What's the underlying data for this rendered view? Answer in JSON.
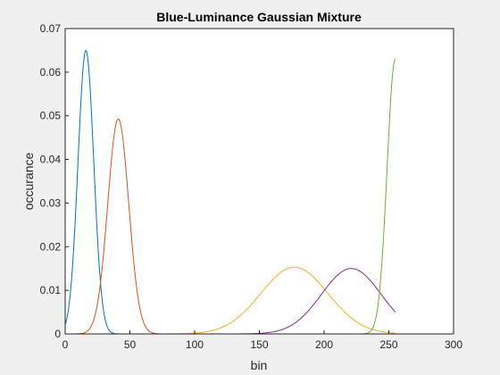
{
  "chart_data": {
    "type": "line",
    "title": "Blue-Luminance Gaussian Mixture",
    "xlabel": "bin",
    "ylabel": "occurance",
    "xlim": [
      0,
      300
    ],
    "ylim": [
      0,
      0.07
    ],
    "x_ticks": [
      "0",
      "50",
      "100",
      "150",
      "200",
      "250",
      "300"
    ],
    "y_ticks": [
      "0",
      "0.01",
      "0.02",
      "0.03",
      "0.04",
      "0.05",
      "0.06",
      "0.07"
    ],
    "grid": false,
    "legend": "none",
    "x_range": [
      0,
      255
    ],
    "series": [
      {
        "color": "#0072bd",
        "gaussian": {
          "peak": 0.065,
          "mean": 16,
          "sd": 6.1
        }
      },
      {
        "color": "#d95319",
        "gaussian": {
          "peak": 0.0493,
          "mean": 41,
          "sd": 8.1
        }
      },
      {
        "color": "#edb120",
        "gaussian": {
          "peak": 0.0153,
          "mean": 177,
          "sd": 26
        }
      },
      {
        "color": "#7e2f8e",
        "gaussian": {
          "peak": 0.015,
          "mean": 221,
          "sd": 23
        }
      },
      {
        "color": "#77ac30",
        "gaussian": {
          "peak": 0.063,
          "mean": 255,
          "sd": 6.3
        }
      }
    ]
  }
}
